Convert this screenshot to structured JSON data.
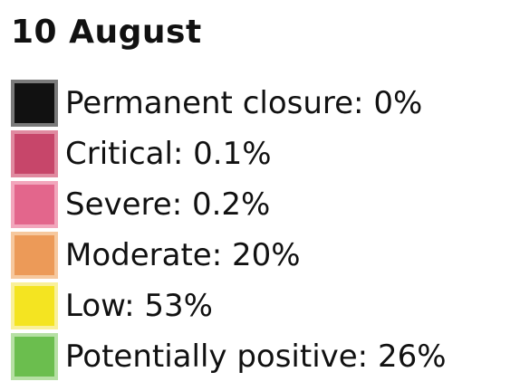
{
  "legend": {
    "title": "10 August",
    "items": [
      {
        "label": "Permanent closure: 0%",
        "color": "#111111",
        "border": "#7a7a7a"
      },
      {
        "label": "Critical: 0.1%",
        "color": "#c7466a",
        "border": "#e08aa0"
      },
      {
        "label": "Severe: 0.2%",
        "color": "#e3668c",
        "border": "#f2a6bc"
      },
      {
        "label": "Moderate: 20%",
        "color": "#ec9a58",
        "border": "#f6c89e"
      },
      {
        "label": "Low: 53%",
        "color": "#f4e421",
        "border": "#f9f09a"
      },
      {
        "label": "Potentially positive: 26%",
        "color": "#6bbe4e",
        "border": "#b6e0a4"
      }
    ]
  }
}
